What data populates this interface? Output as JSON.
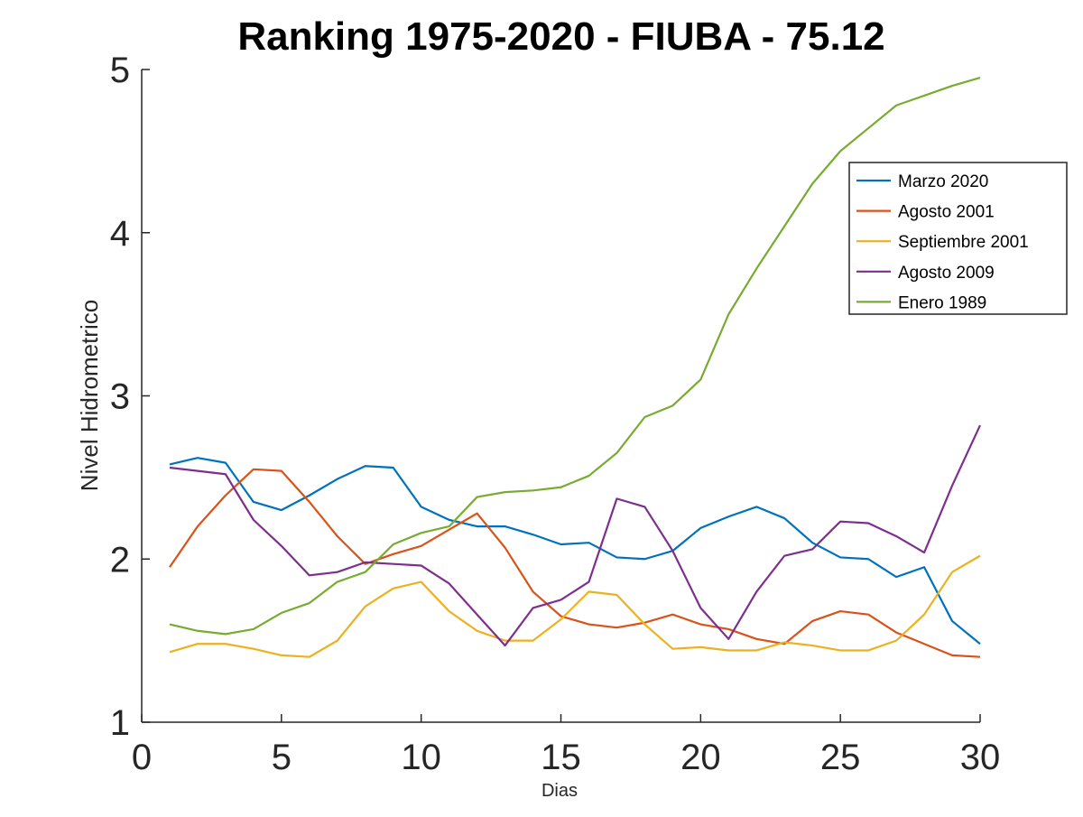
{
  "chart_data": {
    "type": "line",
    "title": "Ranking 1975-2020 - FIUBA - 75.12",
    "xlabel": "Dias",
    "ylabel": "Nivel Hidrometrico",
    "xlim": [
      0,
      30
    ],
    "ylim": [
      1,
      5
    ],
    "xticks": [
      0,
      5,
      10,
      15,
      20,
      25,
      30
    ],
    "yticks": [
      1,
      2,
      3,
      4,
      5
    ],
    "grid": false,
    "legend_position": "top-right",
    "x": [
      1,
      2,
      3,
      4,
      5,
      6,
      7,
      8,
      9,
      10,
      11,
      12,
      13,
      14,
      15,
      16,
      17,
      18,
      19,
      20,
      21,
      22,
      23,
      24,
      25,
      26,
      27,
      28,
      29,
      30
    ],
    "series": [
      {
        "name": "Marzo 2020",
        "color": "#0072BD",
        "values": [
          2.58,
          2.62,
          2.59,
          2.35,
          2.3,
          2.39,
          2.49,
          2.57,
          2.56,
          2.32,
          2.24,
          2.2,
          2.2,
          2.15,
          2.09,
          2.1,
          2.01,
          2.0,
          2.05,
          2.19,
          2.26,
          2.32,
          2.25,
          2.1,
          2.01,
          2.0,
          1.89,
          1.95,
          1.62,
          1.48
        ]
      },
      {
        "name": "Agosto 2001",
        "color": "#D95319",
        "values": [
          1.95,
          2.2,
          2.39,
          2.55,
          2.54,
          2.35,
          2.14,
          1.97,
          2.03,
          2.08,
          2.18,
          2.28,
          2.07,
          1.8,
          1.65,
          1.6,
          1.58,
          1.61,
          1.66,
          1.6,
          1.57,
          1.51,
          1.48,
          1.62,
          1.68,
          1.66,
          1.55,
          1.48,
          1.41,
          1.4
        ]
      },
      {
        "name": "Septiembre 2001",
        "color": "#EDB120",
        "values": [
          1.43,
          1.48,
          1.48,
          1.45,
          1.41,
          1.4,
          1.5,
          1.71,
          1.82,
          1.86,
          1.68,
          1.56,
          1.5,
          1.5,
          1.63,
          1.8,
          1.78,
          1.6,
          1.45,
          1.46,
          1.44,
          1.44,
          1.49,
          1.47,
          1.44,
          1.44,
          1.5,
          1.66,
          1.92,
          2.02
        ]
      },
      {
        "name": "Agosto 2009",
        "color": "#7E2F8E",
        "values": [
          2.56,
          2.54,
          2.52,
          2.24,
          2.08,
          1.9,
          1.92,
          1.98,
          1.97,
          1.96,
          1.85,
          1.66,
          1.47,
          1.7,
          1.75,
          1.86,
          2.37,
          2.32,
          2.05,
          1.7,
          1.51,
          1.8,
          2.02,
          2.06,
          2.23,
          2.22,
          2.14,
          2.04,
          2.45,
          2.82
        ]
      },
      {
        "name": "Enero 1989",
        "color": "#77AC30",
        "values": [
          1.6,
          1.56,
          1.54,
          1.57,
          1.67,
          1.73,
          1.86,
          1.92,
          2.09,
          2.16,
          2.2,
          2.38,
          2.41,
          2.42,
          2.44,
          2.51,
          2.65,
          2.87,
          2.94,
          3.1,
          3.5,
          3.78,
          4.04,
          4.3,
          4.5,
          4.64,
          4.78,
          4.84,
          4.9,
          4.95
        ]
      }
    ]
  }
}
